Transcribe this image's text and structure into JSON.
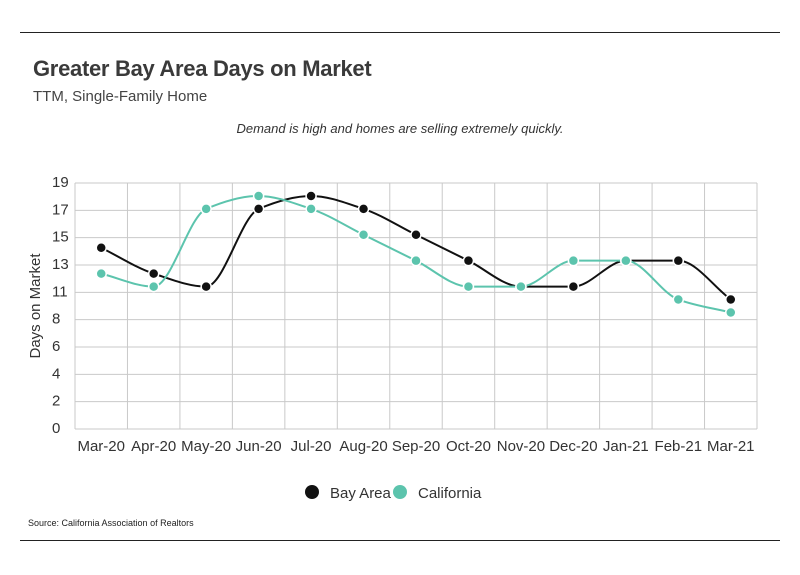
{
  "header": {
    "title": "Greater Bay Area Days on Market",
    "subtitle": "TTM, Single-Family Home",
    "annotation": "Demand is high and homes are selling extremely quickly.",
    "source": "Source:  California Association of Realtors"
  },
  "colors": {
    "bay_area": "#111111",
    "california": "#5cc4ad",
    "grid": "#c9c9c9"
  },
  "chart_data": {
    "type": "line",
    "title": "Greater Bay Area Days on Market",
    "subtitle": "TTM, Single-Family Home",
    "ylabel": "Days on Market",
    "xlabel": "",
    "categories": [
      "Mar-20",
      "Apr-20",
      "May-20",
      "Jun-20",
      "Jul-20",
      "Aug-20",
      "Sep-20",
      "Oct-20",
      "Nov-20",
      "Dec-20",
      "Jan-21",
      "Feb-21",
      "Mar-21"
    ],
    "y_ticks": [
      "0",
      "2",
      "4",
      "6",
      "8",
      "11",
      "13",
      "15",
      "17",
      "19"
    ],
    "ylim": [
      0,
      19
    ],
    "grid": true,
    "legend_position": "bottom-center",
    "series": [
      {
        "name": "Bay Area",
        "color": "#111111",
        "values": [
          14,
          12,
          11,
          17,
          18,
          17,
          15,
          13,
          11,
          11,
          13,
          13,
          10
        ]
      },
      {
        "name": "California",
        "color": "#5cc4ad",
        "values": [
          12,
          11,
          17,
          18,
          17,
          15,
          13,
          11,
          11,
          13,
          13,
          10,
          9
        ]
      }
    ]
  }
}
